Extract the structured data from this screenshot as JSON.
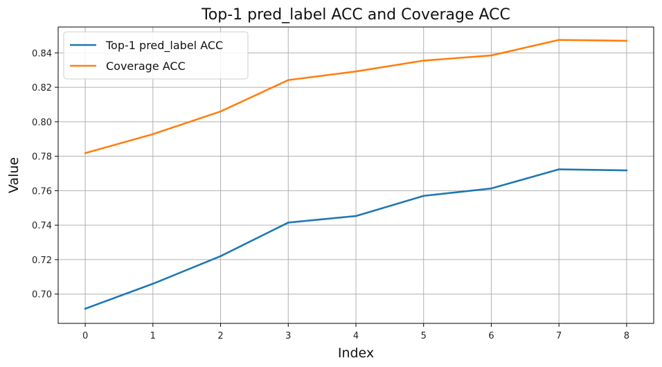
{
  "chart_data": {
    "type": "line",
    "title": "Top-1 pred_label ACC and Coverage ACC",
    "xlabel": "Index",
    "ylabel": "Value",
    "x": [
      0,
      1,
      2,
      3,
      4,
      5,
      6,
      7,
      8
    ],
    "xlim": [
      -0.4,
      8.4
    ],
    "ylim": [
      0.683,
      0.855
    ],
    "xticks": [
      0,
      1,
      2,
      3,
      4,
      5,
      6,
      7,
      8
    ],
    "yticks": [
      0.7,
      0.72,
      0.74,
      0.76,
      0.78,
      0.8,
      0.82,
      0.84
    ],
    "ytick_labels": [
      "0.70",
      "0.72",
      "0.74",
      "0.76",
      "0.78",
      "0.80",
      "0.82",
      "0.84"
    ],
    "grid": true,
    "legend_position": "top-left",
    "series": [
      {
        "name": "Top-1 pred_label ACC",
        "color": "#1f77b4",
        "values": [
          0.6915,
          0.706,
          0.722,
          0.7415,
          0.7453,
          0.757,
          0.7613,
          0.7724,
          0.7718
        ]
      },
      {
        "name": "Coverage ACC",
        "color": "#ff7f0e",
        "values": [
          0.7818,
          0.7928,
          0.806,
          0.8242,
          0.8292,
          0.8355,
          0.8385,
          0.8475,
          0.847
        ]
      }
    ]
  }
}
